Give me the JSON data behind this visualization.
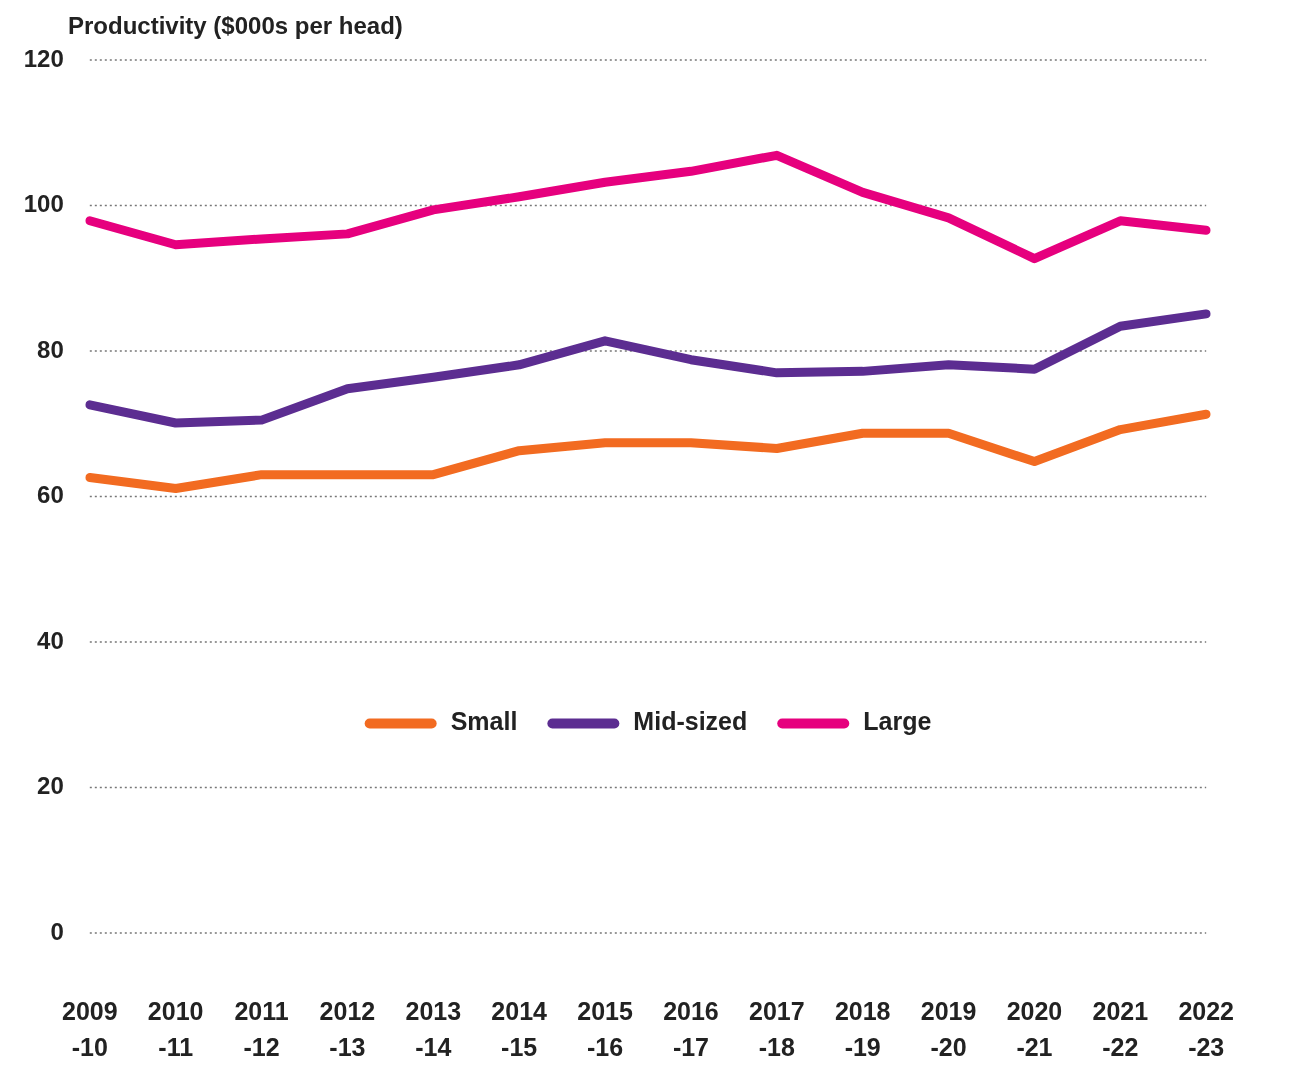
{
  "chart_data": {
    "type": "line",
    "ylabel": "Productivity ($000s per head)",
    "categories": [
      "2009-10",
      "2010-11",
      "2011-12",
      "2012-13",
      "2013-14",
      "2014-15",
      "2015-16",
      "2016-17",
      "2017-18",
      "2018-19",
      "2019-20",
      "2020-21",
      "2021-22",
      "2022-23"
    ],
    "series": [
      {
        "name": "Small",
        "color": "#f26b21",
        "values": [
          62.6,
          61.1,
          63.0,
          63.0,
          63.0,
          66.3,
          67.4,
          67.4,
          66.6,
          68.7,
          68.7,
          64.8,
          69.2,
          71.3
        ]
      },
      {
        "name": "Mid-sized",
        "color": "#5c2d91",
        "values": [
          72.6,
          70.1,
          70.5,
          74.8,
          76.4,
          78.1,
          81.4,
          78.8,
          77.0,
          77.2,
          78.1,
          77.5,
          83.4,
          85.1
        ]
      },
      {
        "name": "Large",
        "color": "#e6007e",
        "values": [
          97.9,
          94.6,
          95.4,
          96.1,
          99.4,
          101.2,
          103.2,
          104.7,
          106.9,
          101.8,
          98.3,
          92.7,
          97.9,
          96.6
        ]
      }
    ],
    "ylim": [
      0,
      120
    ],
    "yticks": [
      0,
      20,
      40,
      60,
      80,
      100,
      120
    ],
    "grid": "y",
    "legend": "center",
    "marker": "none",
    "line_style": "solid"
  }
}
